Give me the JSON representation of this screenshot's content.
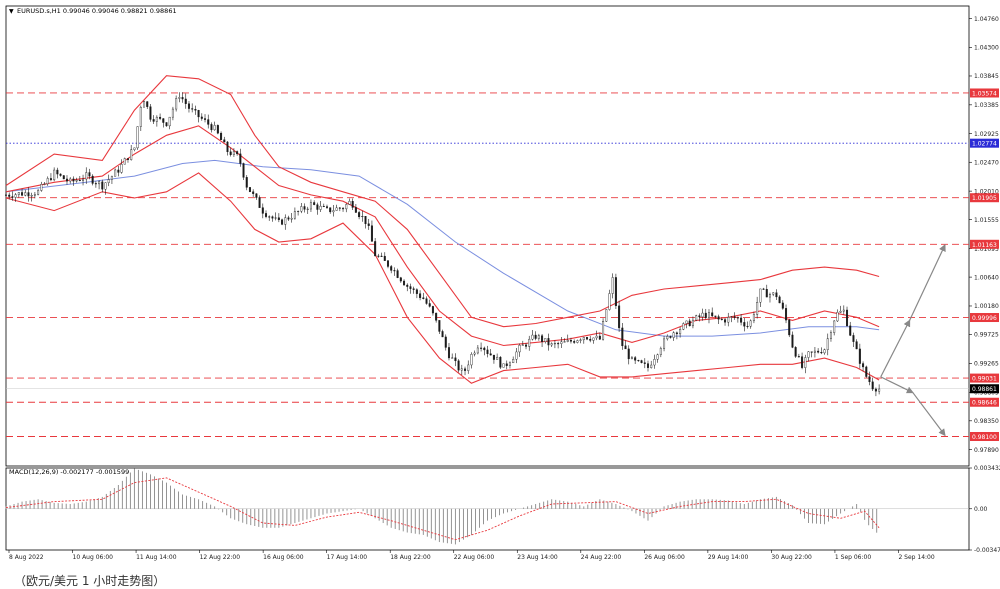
{
  "header": {
    "arrow_glyph": "▼",
    "info_text": "EURUSD.s,H1  0.99046 0.99046 0.98821 0.98861"
  },
  "macd": {
    "label": "MACD(12,26,9) -0.002177 -0.001599"
  },
  "caption": "（欧元/美元 1 小时走势图）",
  "colors": {
    "bollinger": "#e8383d",
    "ma": "#7b8fe0",
    "candle": "#1a1a1a",
    "dashed_level": "#e8383d",
    "blue_level": "#2b2bd6",
    "projection": "#888888",
    "macd_hist": "#888888",
    "macd_signal": "#e8383d"
  },
  "chart_data": [
    {
      "type": "candlestick",
      "title": "EURUSD.s,H1",
      "ylim": [
        0.9763,
        1.0496
      ],
      "y_ticks": [
        "1.04760",
        "1.04300",
        "1.03845",
        "1.03385",
        "1.02925",
        "1.02470",
        "1.02010",
        "1.01555",
        "1.01095",
        "1.00640",
        "1.00180",
        "0.99725",
        "0.99265",
        "0.98805",
        "0.98350",
        "0.97890"
      ],
      "x_ticks": [
        "8 Aug 2022",
        "10 Aug 06:00",
        "11 Aug 14:00",
        "12 Aug 22:00",
        "16 Aug 06:00",
        "17 Aug 14:00",
        "18 Aug 22:00",
        "22 Aug 06:00",
        "23 Aug 14:00",
        "24 Aug 22:00",
        "26 Aug 06:00",
        "29 Aug 14:00",
        "30 Aug 22:00",
        "1 Sep 06:00",
        "2 Sep 14:00"
      ],
      "price_path": [
        [
          0,
          1.0195
        ],
        [
          2,
          1.02
        ],
        [
          3,
          1.023
        ],
        [
          4,
          1.0215
        ],
        [
          5,
          1.0225
        ],
        [
          6,
          1.021
        ],
        [
          7,
          1.0235
        ],
        [
          8,
          1.027
        ],
        [
          8.5,
          1.0355
        ],
        [
          9,
          1.032
        ],
        [
          10,
          1.031
        ],
        [
          10.8,
          1.0355
        ],
        [
          11.5,
          1.033
        ],
        [
          12,
          1.032
        ],
        [
          13,
          1.03
        ],
        [
          13.8,
          1.0265
        ],
        [
          14.5,
          1.0255
        ],
        [
          15,
          1.021
        ],
        [
          16,
          1.017
        ],
        [
          17,
          1.015
        ],
        [
          18,
          1.0165
        ],
        [
          19,
          1.018
        ],
        [
          20,
          1.017
        ],
        [
          21,
          1.0175
        ],
        [
          21.5,
          1.0185
        ],
        [
          22,
          1.0165
        ],
        [
          22.5,
          1.015
        ],
        [
          23,
          1.01
        ],
        [
          24,
          1.008
        ],
        [
          25,
          1.005
        ],
        [
          26,
          1.003
        ],
        [
          26.5,
          1.001
        ],
        [
          27,
          0.998
        ],
        [
          27.5,
          0.9945
        ],
        [
          28,
          0.9925
        ],
        [
          28.5,
          0.991
        ],
        [
          29,
          0.994
        ],
        [
          29.5,
          0.996
        ],
        [
          30,
          0.9945
        ],
        [
          30.5,
          0.9935
        ],
        [
          31,
          0.992
        ],
        [
          32,
          0.995
        ],
        [
          33,
          0.997
        ],
        [
          34,
          0.9955
        ],
        [
          35,
          0.996
        ],
        [
          36,
          0.997
        ],
        [
          37,
          0.9965
        ],
        [
          37.8,
          1.006
        ],
        [
          38.3,
          0.996
        ],
        [
          39,
          0.993
        ],
        [
          40,
          0.992
        ],
        [
          40.8,
          0.9955
        ],
        [
          41.5,
          0.9975
        ],
        [
          42.5,
          0.999
        ],
        [
          43.5,
          1.0005
        ],
        [
          44.5,
          0.9995
        ],
        [
          45.5,
          1.0
        ],
        [
          46.3,
          0.9985
        ],
        [
          47,
          1.004
        ],
        [
          48,
          1.0035
        ],
        [
          48.5,
          1.0005
        ],
        [
          49,
          0.9955
        ],
        [
          49.6,
          0.992
        ],
        [
          50,
          0.994
        ],
        [
          51,
          0.995
        ],
        [
          51.7,
          1.0005
        ],
        [
          52.2,
          1.001
        ],
        [
          52.7,
          0.9965
        ],
        [
          53,
          0.9945
        ],
        [
          53.5,
          0.991
        ],
        [
          54,
          0.989
        ],
        [
          54.4,
          0.9886
        ]
      ],
      "bollinger_upper": [
        [
          0,
          1.021
        ],
        [
          3,
          1.026
        ],
        [
          6,
          1.025
        ],
        [
          8,
          1.033
        ],
        [
          10,
          1.0385
        ],
        [
          12,
          1.038
        ],
        [
          14,
          1.0355
        ],
        [
          15.5,
          1.029
        ],
        [
          17,
          1.024
        ],
        [
          19,
          1.0215
        ],
        [
          21,
          1.02
        ],
        [
          23,
          1.0185
        ],
        [
          25,
          1.014
        ],
        [
          27,
          1.007
        ],
        [
          29,
          1.0
        ],
        [
          31,
          0.9985
        ],
        [
          33,
          0.999
        ],
        [
          35,
          1.0
        ],
        [
          37,
          1.001
        ],
        [
          39,
          1.0035
        ],
        [
          41,
          1.0045
        ],
        [
          43,
          1.005
        ],
        [
          45,
          1.0055
        ],
        [
          47,
          1.006
        ],
        [
          49,
          1.0075
        ],
        [
          51,
          1.008
        ],
        [
          53,
          1.0075
        ],
        [
          54.4,
          1.0065
        ]
      ],
      "bollinger_middle": [
        [
          0,
          1.02
        ],
        [
          3,
          1.0215
        ],
        [
          6,
          1.0225
        ],
        [
          8,
          1.026
        ],
        [
          10,
          1.029
        ],
        [
          12,
          1.0305
        ],
        [
          14,
          1.027
        ],
        [
          15.5,
          1.024
        ],
        [
          17,
          1.021
        ],
        [
          19,
          1.0195
        ],
        [
          21,
          1.0185
        ],
        [
          23,
          1.016
        ],
        [
          25,
          1.008
        ],
        [
          27,
          1.001
        ],
        [
          29,
          0.997
        ],
        [
          31,
          0.9955
        ],
        [
          33,
          0.996
        ],
        [
          35,
          0.9965
        ],
        [
          37,
          0.9975
        ],
        [
          39,
          0.996
        ],
        [
          41,
          0.9975
        ],
        [
          43,
          0.9995
        ],
        [
          45,
          1.0
        ],
        [
          47,
          1.001
        ],
        [
          49,
          0.9995
        ],
        [
          51,
          1.001
        ],
        [
          53,
          1.0
        ],
        [
          54.4,
          0.9985
        ]
      ],
      "bollinger_lower": [
        [
          0,
          1.019
        ],
        [
          3,
          1.017
        ],
        [
          6,
          1.02
        ],
        [
          8,
          1.019
        ],
        [
          10,
          1.02
        ],
        [
          12,
          1.023
        ],
        [
          14,
          1.0185
        ],
        [
          15.5,
          1.014
        ],
        [
          17,
          1.012
        ],
        [
          19,
          1.0125
        ],
        [
          21,
          1.015
        ],
        [
          23,
          1.01
        ],
        [
          25,
          1.0
        ],
        [
          27,
          0.9935
        ],
        [
          29,
          0.9895
        ],
        [
          31,
          0.9915
        ],
        [
          33,
          0.992
        ],
        [
          35,
          0.9925
        ],
        [
          37,
          0.9905
        ],
        [
          39,
          0.9905
        ],
        [
          41,
          0.991
        ],
        [
          43,
          0.9915
        ],
        [
          45,
          0.992
        ],
        [
          47,
          0.9925
        ],
        [
          49,
          0.9925
        ],
        [
          51,
          0.9935
        ],
        [
          53,
          0.992
        ],
        [
          54.4,
          0.99
        ]
      ],
      "moving_average": [
        [
          0,
          1.02
        ],
        [
          5,
          1.0215
        ],
        [
          8,
          1.0225
        ],
        [
          11,
          1.0245
        ],
        [
          13,
          1.025
        ],
        [
          16,
          1.024
        ],
        [
          19,
          1.0235
        ],
        [
          22,
          1.0225
        ],
        [
          25,
          1.018
        ],
        [
          28,
          1.012
        ],
        [
          31,
          1.007
        ],
        [
          35,
          1.001
        ],
        [
          38,
          0.998
        ],
        [
          41,
          0.997
        ],
        [
          44,
          0.997
        ],
        [
          47,
          0.9975
        ],
        [
          50,
          0.9985
        ],
        [
          53,
          0.9985
        ],
        [
          54.4,
          0.998
        ]
      ],
      "levels": [
        {
          "label": "1.03574",
          "value": 1.03574,
          "style": "dashed"
        },
        {
          "label": "1.02774",
          "value": 1.02774,
          "style": "dotted-blue"
        },
        {
          "label": "1.01905",
          "value": 1.01905,
          "style": "dashed"
        },
        {
          "label": "1.01163",
          "value": 1.01163,
          "style": "dashed"
        },
        {
          "label": "0.99996",
          "value": 0.99996,
          "style": "dashed"
        },
        {
          "label": "0.99031",
          "value": 0.99031,
          "style": "dashed"
        },
        {
          "label": "0.98646",
          "value": 0.98646,
          "style": "dashed"
        },
        {
          "label": "0.98100",
          "value": 0.981,
          "style": "dashed"
        }
      ],
      "current_price": {
        "label": "0.98861",
        "value": 0.98861
      },
      "projection": [
        {
          "from": [
            54.5,
            0.9905
          ],
          "to": [
            56.5,
            0.988
          ],
          "style": "arrow"
        },
        {
          "from": [
            56.5,
            0.988
          ],
          "to": [
            58.5,
            0.9812
          ],
          "style": "arrow"
        },
        {
          "from": [
            54.5,
            0.9905
          ],
          "to": [
            56.3,
            0.9995
          ],
          "style": "arrow"
        },
        {
          "from": [
            56.3,
            0.9995
          ],
          "to": [
            58.5,
            1.0115
          ],
          "style": "arrow"
        }
      ]
    },
    {
      "type": "bar",
      "title": "MACD(12,26,9) -0.002177 -0.001599",
      "ylim": [
        -0.00347,
        0.003432
      ],
      "y_ticks": [
        "0.003432",
        "0.00",
        "-0.003470"
      ],
      "histogram": [
        [
          0,
          0.0002
        ],
        [
          1,
          0.0006
        ],
        [
          2,
          0.0008
        ],
        [
          3,
          0.0005
        ],
        [
          4,
          0.0004
        ],
        [
          5,
          0.0006
        ],
        [
          6,
          0.001
        ],
        [
          7,
          0.002
        ],
        [
          8,
          0.0034
        ],
        [
          9,
          0.0029
        ],
        [
          10,
          0.0022
        ],
        [
          11,
          0.0012
        ],
        [
          12,
          0.0008
        ],
        [
          13,
          0.0002
        ],
        [
          14,
          -0.0008
        ],
        [
          15,
          -0.0013
        ],
        [
          16,
          -0.0016
        ],
        [
          17,
          -0.0016
        ],
        [
          18,
          -0.0012
        ],
        [
          19,
          -0.0008
        ],
        [
          20,
          -0.0004
        ],
        [
          21,
          -0.0002
        ],
        [
          22,
          0.0
        ],
        [
          23,
          -0.0008
        ],
        [
          24,
          -0.0016
        ],
        [
          25,
          -0.002
        ],
        [
          26,
          -0.0022
        ],
        [
          27,
          -0.0028
        ],
        [
          28,
          -0.003
        ],
        [
          29,
          -0.0022
        ],
        [
          30,
          -0.001
        ],
        [
          31,
          -0.0004
        ],
        [
          32,
          0.0
        ],
        [
          33,
          0.0004
        ],
        [
          34,
          0.0008
        ],
        [
          35,
          0.0006
        ],
        [
          36,
          0.0002
        ],
        [
          37,
          0.0008
        ],
        [
          38,
          0.0004
        ],
        [
          39,
          -0.0002
        ],
        [
          40,
          -0.001
        ],
        [
          41,
          0.0002
        ],
        [
          42,
          0.0006
        ],
        [
          43,
          0.0008
        ],
        [
          44,
          0.0008
        ],
        [
          45,
          0.0007
        ],
        [
          46,
          0.0004
        ],
        [
          47,
          0.0008
        ],
        [
          48,
          0.001
        ],
        [
          49,
          0.0003
        ],
        [
          50,
          -0.0012
        ],
        [
          51,
          -0.0013
        ],
        [
          52,
          -0.0004
        ],
        [
          53,
          0.0004
        ],
        [
          53.6,
          -0.0012
        ],
        [
          54.4,
          -0.0022
        ]
      ],
      "signal": [
        [
          0,
          0.0001
        ],
        [
          3,
          0.0006
        ],
        [
          6,
          0.0008
        ],
        [
          8,
          0.0022
        ],
        [
          10,
          0.0026
        ],
        [
          12,
          0.0014
        ],
        [
          14,
          0.0002
        ],
        [
          16,
          -0.0012
        ],
        [
          18,
          -0.0014
        ],
        [
          20,
          -0.0007
        ],
        [
          22,
          -0.0003
        ],
        [
          24,
          -0.001
        ],
        [
          26,
          -0.0018
        ],
        [
          28,
          -0.0026
        ],
        [
          30,
          -0.0018
        ],
        [
          32,
          -0.0006
        ],
        [
          34,
          0.0004
        ],
        [
          36,
          0.0005
        ],
        [
          38,
          0.0006
        ],
        [
          40,
          -0.0004
        ],
        [
          42,
          0.0002
        ],
        [
          44,
          0.0006
        ],
        [
          46,
          0.0006
        ],
        [
          48,
          0.0008
        ],
        [
          50,
          -0.0004
        ],
        [
          52,
          -0.0008
        ],
        [
          53.5,
          -0.0002
        ],
        [
          54.4,
          -0.0016
        ]
      ]
    }
  ]
}
